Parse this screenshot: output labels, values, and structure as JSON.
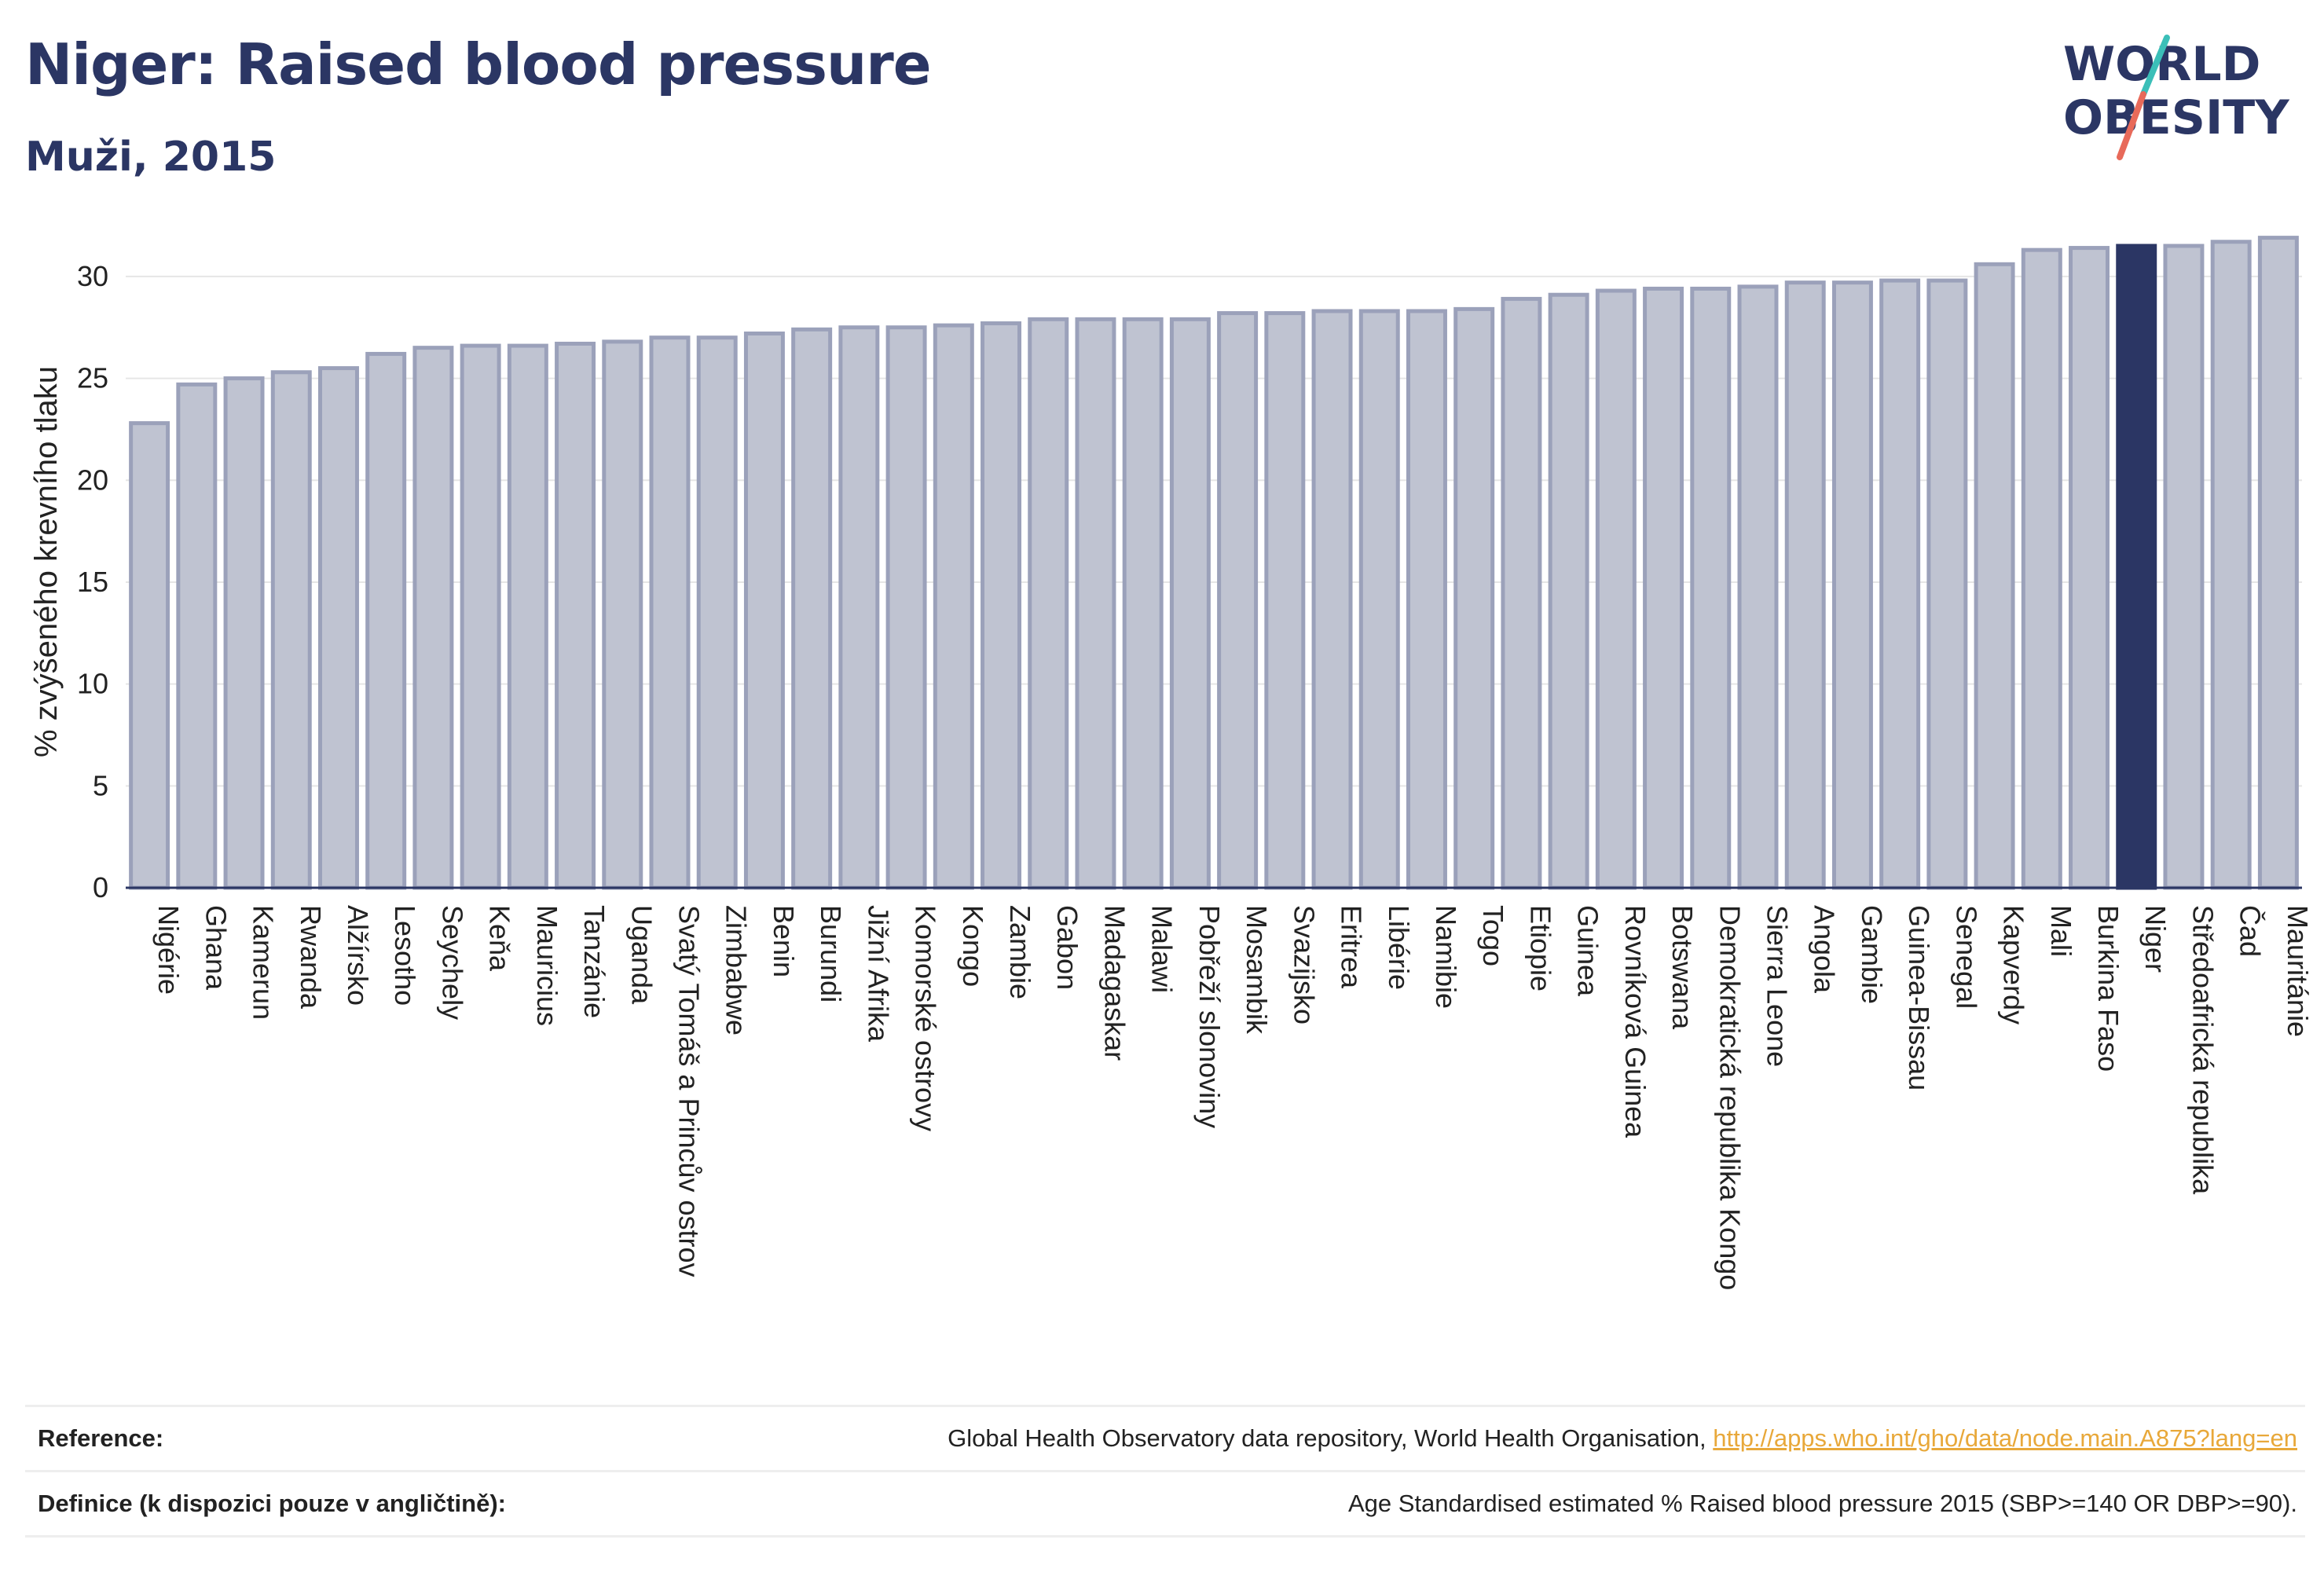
{
  "header": {
    "title": "Niger: Raised blood pressure",
    "subtitle": "Muži, 2015"
  },
  "logo": {
    "line1": "WORLD",
    "line2": "OBESITY",
    "colors": {
      "text": "#2b3664",
      "slash_teal": "#3bbfb8",
      "slash_coral": "#e86a5a"
    }
  },
  "footer": {
    "reference_label": "Reference:",
    "reference_text": "Global Health Observatory data repository, World Health Organisation,",
    "reference_link": "http://apps.who.int/gho/data/node.main.A875?lang=en",
    "definition_label": "Definice (k dispozici pouze v angličtině):",
    "definition_text": "Age Standardised estimated % Raised blood pressure 2015 (SBP>=140 OR DBP>=90)."
  },
  "colors": {
    "bar_fill": "#bfc3d1",
    "bar_stroke": "#9ba1ba",
    "highlight": "#2b3664",
    "axis_text": "#222222",
    "gridline": "#e6e6e6"
  },
  "chart_data": {
    "type": "bar",
    "title": "Niger: Raised blood pressure",
    "subtitle": "Muži, 2015",
    "xlabel": "",
    "ylabel": "% zvýšeného krevního tlaku",
    "ylim": [
      0,
      32
    ],
    "yticks": [
      0,
      5,
      10,
      15,
      20,
      25,
      30
    ],
    "grid": true,
    "highlight_category": "Niger",
    "categories": [
      "Nigérie",
      "Ghana",
      "Kamerun",
      "Rwanda",
      "Alžírsko",
      "Lesotho",
      "Seychely",
      "Keňa",
      "Mauricius",
      "Tanzánie",
      "Uganda",
      "Svatý Tomáš a Princův ostrov",
      "Zimbabwe",
      "Benin",
      "Burundi",
      "Jižní Afrika",
      "Komorské ostrovy",
      "Kongo",
      "Zambie",
      "Gabon",
      "Madagaskar",
      "Malawi",
      "Pobřeží slonoviny",
      "Mosambik",
      "Svazijsko",
      "Eritrea",
      "Libérie",
      "Namibie",
      "Togo",
      "Etiopie",
      "Guinea",
      "Rovníková Guinea",
      "Botswana",
      "Demokratická republika Kongo",
      "Sierra Leone",
      "Angola",
      "Gambie",
      "Guinea-Bissau",
      "Senegal",
      "Kapverdy",
      "Mali",
      "Burkina Faso",
      "Niger",
      "Středoafrická republika",
      "Čad",
      "Mauritánie"
    ],
    "values": [
      22.8,
      24.7,
      25.0,
      25.3,
      25.5,
      26.2,
      26.5,
      26.6,
      26.6,
      26.7,
      26.8,
      27.0,
      27.0,
      27.2,
      27.4,
      27.5,
      27.5,
      27.6,
      27.7,
      27.9,
      27.9,
      27.9,
      27.9,
      28.2,
      28.2,
      28.3,
      28.3,
      28.3,
      28.4,
      28.9,
      29.1,
      29.3,
      29.4,
      29.4,
      29.5,
      29.7,
      29.7,
      29.8,
      29.8,
      30.6,
      31.3,
      31.4,
      31.5,
      31.5,
      31.7,
      31.9
    ]
  }
}
